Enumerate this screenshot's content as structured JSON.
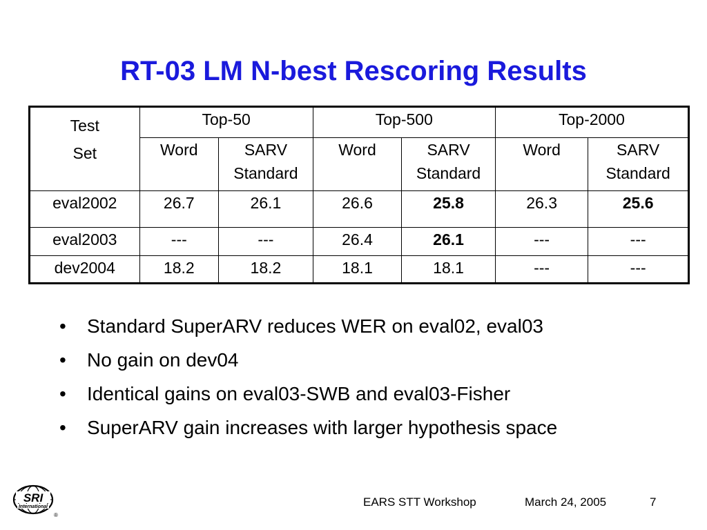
{
  "slide": {
    "title": "RT-03 LM N-best Rescoring Results",
    "title_color": "#1a1adc"
  },
  "table": {
    "row_header": [
      "Test",
      "Set"
    ],
    "groups": [
      "Top-50",
      "Top-500",
      "Top-2000"
    ],
    "subheaders": [
      [
        "Word"
      ],
      [
        "SARV",
        "Standard"
      ],
      [
        "Word"
      ],
      [
        "SARV",
        "Standard"
      ],
      [
        "Word"
      ],
      [
        "SARV",
        "Standard"
      ]
    ],
    "rows": [
      {
        "label": "eval2002",
        "cells": [
          "26.7",
          "26.1",
          "26.6",
          "25.8",
          "26.3",
          "25.6"
        ],
        "bold": [
          false,
          false,
          false,
          true,
          false,
          true
        ]
      },
      {
        "label": "eval2003",
        "cells": [
          "---",
          "---",
          "26.4",
          "26.1",
          "---",
          "---"
        ],
        "bold": [
          false,
          false,
          false,
          true,
          false,
          false
        ]
      },
      {
        "label": "dev2004",
        "cells": [
          "18.2",
          "18.2",
          "18.1",
          "18.1",
          "---",
          "---"
        ],
        "bold": [
          false,
          false,
          false,
          false,
          false,
          false
        ]
      }
    ]
  },
  "bullets": [
    "Standard SuperARV reduces WER on eval02, eval03",
    "No gain on dev04",
    "Identical gains on eval03-SWB and eval03-Fisher",
    "SuperARV gain increases with larger hypothesis space"
  ],
  "bullet_symbol": "•",
  "footer": {
    "workshop": "EARS STT Workshop",
    "date": "March 24, 2005",
    "page": "7"
  },
  "logo": {
    "name": "sri-international-logo",
    "text_main": "SRI",
    "text_sub": "International",
    "registered": "®"
  }
}
